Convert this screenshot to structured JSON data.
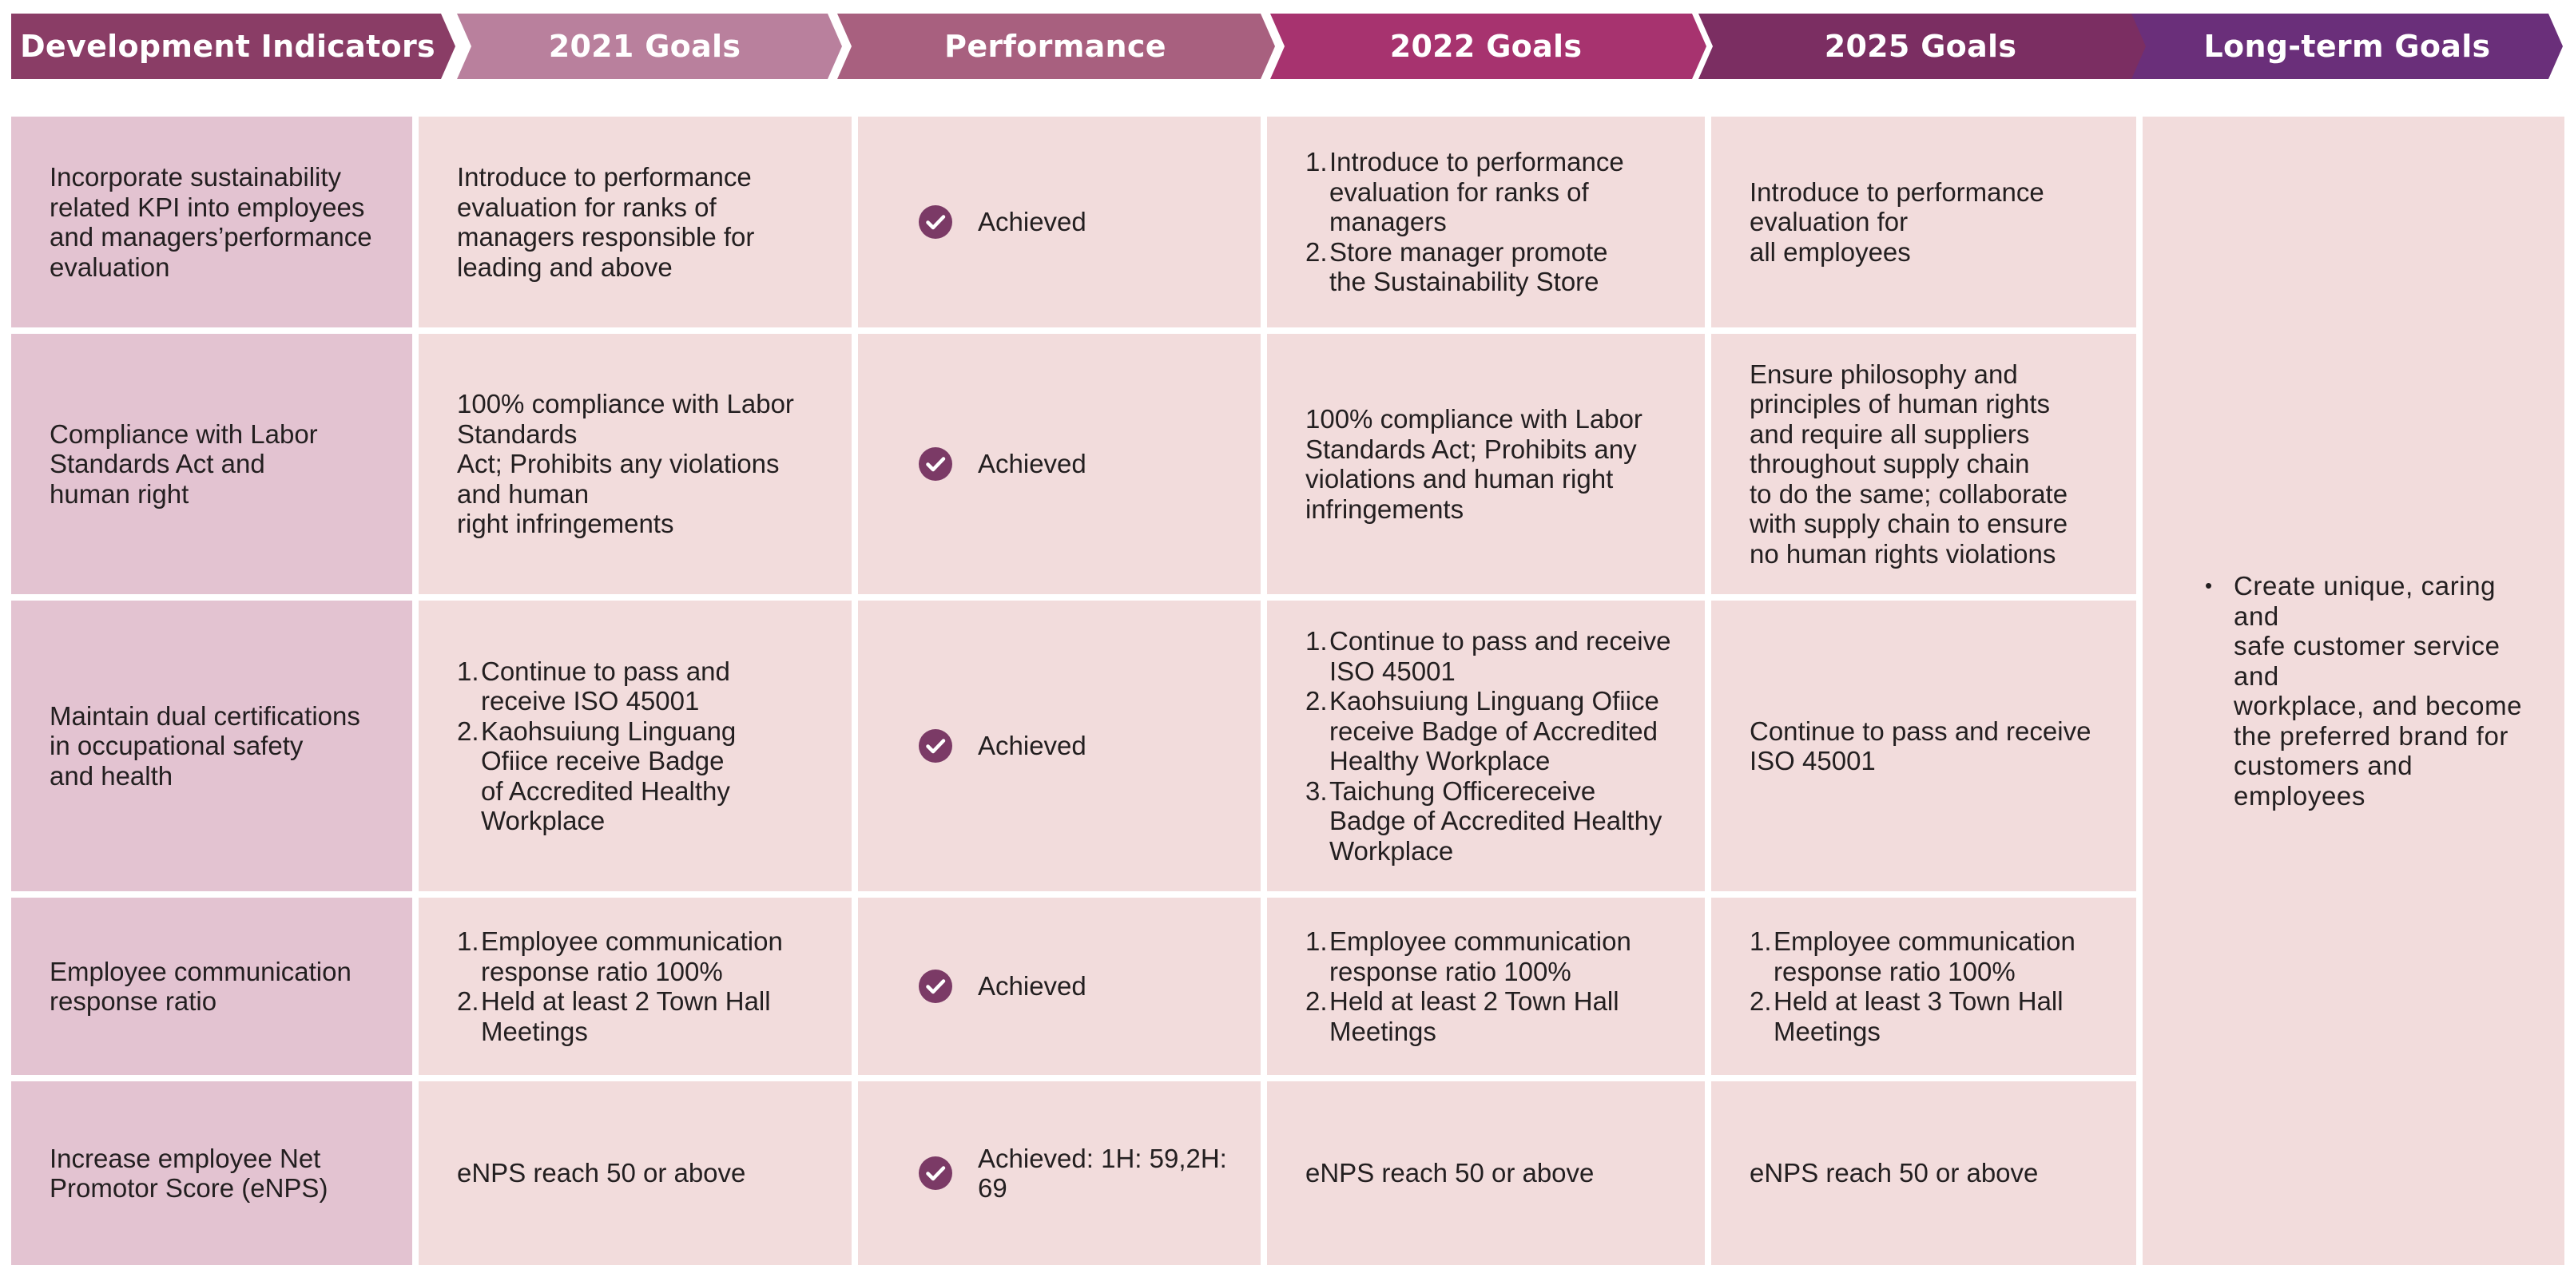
{
  "header": {
    "columns": [
      "Development Indicators",
      "2021 Goals",
      "Performance",
      "2022 Goals",
      "2025 Goals",
      "Long-term Goals"
    ],
    "colors": [
      "#8a3d66",
      "#b9809d",
      "#a8607f",
      "#a7336f",
      "#7b2e62",
      "#6a2f7a"
    ]
  },
  "rows": [
    {
      "indicator": "Incorporate sustainability\nrelated KPI into employees\nand managers’performance\nevaluation",
      "goals_2021": "Introduce to performance\nevaluation for ranks of\nmanagers responsible for\nleading and above",
      "performance": "Achieved",
      "goals_2022": [
        "Introduce to performance\nevaluation for ranks of\nmanagers",
        "Store manager promote\nthe Sustainability Store"
      ],
      "goals_2025": "Introduce to performance\nevaluation for\nall employees"
    },
    {
      "indicator": "Compliance with Labor\nStandards Act and\nhuman right",
      "goals_2021": "100% compliance with Labor\nStandards\nAct; Prohibits any violations\nand human\nright infringements",
      "performance": "Achieved",
      "goals_2022": "100% compliance with Labor\nStandards Act; Prohibits any\nviolations and human right\ninfringements",
      "goals_2025": "Ensure philosophy and\nprinciples of human rights\nand require all suppliers\nthroughout supply chain\nto do the same; collaborate\nwith supply chain to ensure\nno human rights violations"
    },
    {
      "indicator": "Maintain dual certifications\nin occupational safety\nand health",
      "goals_2021": [
        "Continue to pass and\nreceive ISO 45001",
        "Kaohsuiung Linguang\nOfiice receive Badge\nof Accredited Healthy\nWorkplace"
      ],
      "performance": "Achieved",
      "goals_2022": [
        "Continue to pass and receive\nISO 45001",
        "Kaohsuiung Linguang Ofiice\nreceive Badge of Accredited\nHealthy Workplace",
        "Taichung Officereceive\nBadge of Accredited Healthy\nWorkplace"
      ],
      "goals_2025": "Continue to pass and receive\nISO 45001"
    },
    {
      "indicator": "Employee communication\nresponse ratio",
      "goals_2021": [
        "Employee communication\nresponse ratio 100%",
        "Held at least 2 Town Hall\nMeetings"
      ],
      "performance": "Achieved",
      "goals_2022": [
        "Employee communication\nresponse ratio 100%",
        "Held at least 2 Town Hall\nMeetings"
      ],
      "goals_2025": [
        "Employee communication\nresponse ratio 100%",
        "Held at least 3 Town Hall\nMeetings"
      ]
    },
    {
      "indicator": "Increase employee Net\nPromotor Score (eNPS)",
      "goals_2021": "eNPS reach 50 or above",
      "performance": "Achieved: 1H: 59,2H: 69",
      "goals_2022": "eNPS reach 50 or above",
      "goals_2025": "eNPS reach 50 or above"
    }
  ],
  "longterm": {
    "bullet": "Create unique, caring and\nsafe customer service and\nworkplace, and become\nthe preferred brand for\ncustomers and employees"
  },
  "theme": {
    "indicator_bg": "#e3c3d1",
    "cell_bg": "#f2dcdc",
    "check_color": "#7b3a66",
    "text_color": "#231f20"
  },
  "icons": {
    "check": "check-circle-icon"
  }
}
